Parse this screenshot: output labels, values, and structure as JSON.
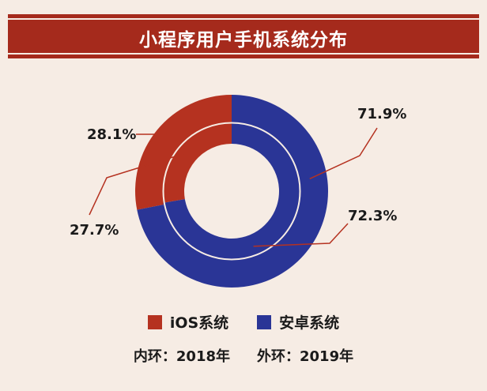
{
  "chart_data": {
    "type": "pie",
    "title": "小程序用户手机系统分布",
    "rings": [
      {
        "name": "2018年",
        "position": "inner",
        "values": [
          27.7,
          72.3
        ]
      },
      {
        "name": "2019年",
        "position": "outer",
        "values": [
          28.1,
          71.9
        ]
      }
    ],
    "categories": [
      "iOS系统",
      "安卓系统"
    ],
    "colors": [
      "#b53220",
      "#2a3596"
    ],
    "data_labels": {
      "outer": [
        "28.1%",
        "71.9%"
      ],
      "inner": [
        "27.7%",
        "72.3%"
      ]
    },
    "legend_placement": "bottom",
    "ring_labels": [
      "内环：2018年",
      "外环：2019年"
    ]
  }
}
